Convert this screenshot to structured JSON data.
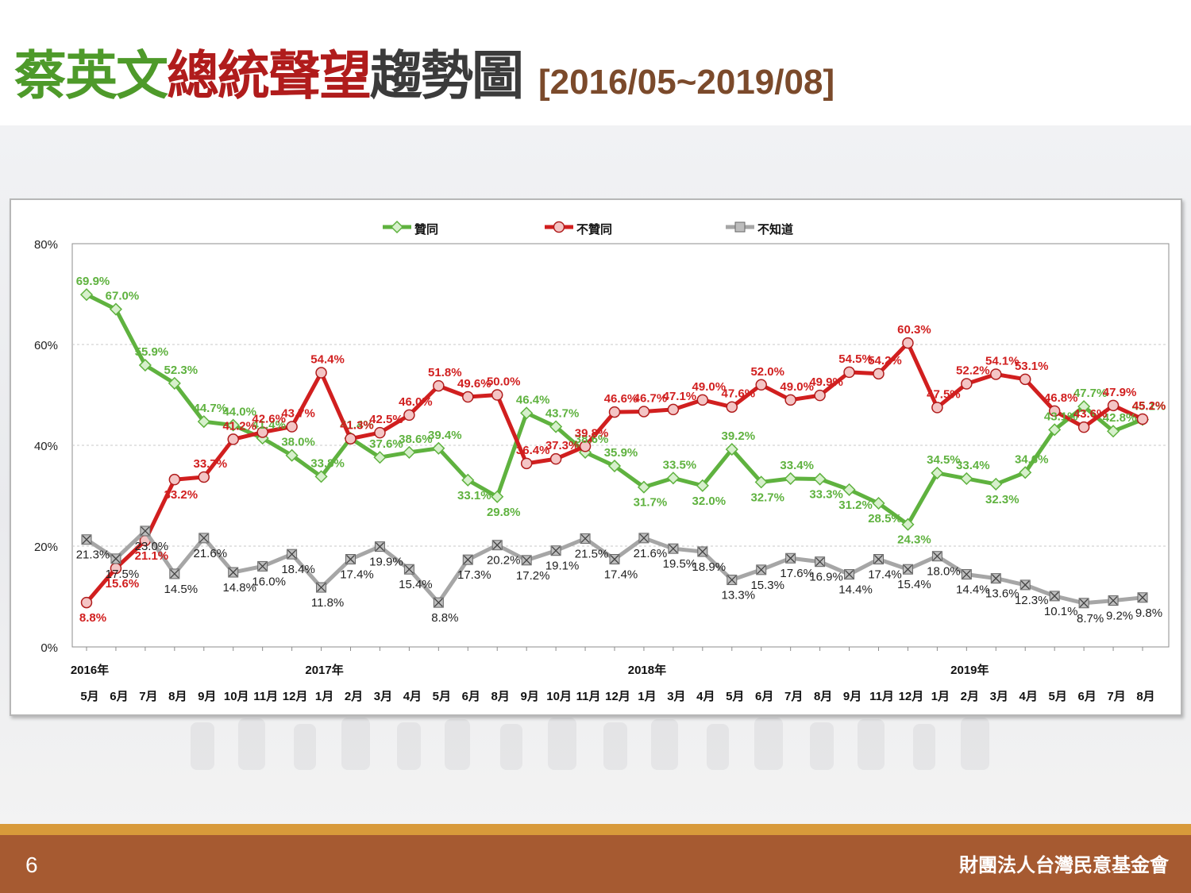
{
  "title": {
    "part1": "蔡英文",
    "part2": "總統聲望",
    "part3": "趨勢圖",
    "range": "[2016/05~2019/08]"
  },
  "footer": {
    "page_number": "6",
    "organization": "財團法人台灣民意基金會"
  },
  "colors": {
    "approve": "#5fb23f",
    "disapprove": "#d11f1f",
    "unknown": "#a6a6a6",
    "title_green": "#4e9a2a",
    "title_red": "#b01c1c",
    "footer_bg": "#a65a31",
    "footer_stripe": "#d89a3a"
  },
  "chart_data": {
    "type": "line",
    "ylim": [
      0,
      80
    ],
    "yticks": [
      "0%",
      "20%",
      "40%",
      "60%",
      "80%"
    ],
    "legend_position": "top",
    "grid": "horizontal dashed",
    "year_labels": [
      {
        "label": "2016年",
        "index": 0
      },
      {
        "label": "2017年",
        "index": 8
      },
      {
        "label": "2018年",
        "index": 19
      },
      {
        "label": "2019年",
        "index": 30
      }
    ],
    "categories": [
      "5月",
      "6月",
      "7月",
      "8月",
      "9月",
      "10月",
      "11月",
      "12月",
      "1月",
      "2月",
      "3月",
      "4月",
      "5月",
      "6月",
      "8月",
      "9月",
      "10月",
      "11月",
      "12月",
      "1月",
      "3月",
      "4月",
      "5月",
      "6月",
      "7月",
      "8月",
      "9月",
      "11月",
      "12月",
      "1月",
      "2月",
      "3月",
      "4月",
      "5月",
      "6月",
      "7月",
      "8月"
    ],
    "series": [
      {
        "name": "贊同",
        "key": "approve",
        "values": [
          69.9,
          67.0,
          55.9,
          52.3,
          44.7,
          44.0,
          41.4,
          38.0,
          33.8,
          41.4,
          37.6,
          38.6,
          39.4,
          33.1,
          29.8,
          46.4,
          43.7,
          38.6,
          35.9,
          31.7,
          33.5,
          32.0,
          39.2,
          32.7,
          33.4,
          33.3,
          31.2,
          28.5,
          24.3,
          34.5,
          33.4,
          32.3,
          34.6,
          43.1,
          47.7,
          42.8,
          45.1
        ]
      },
      {
        "name": "不贊同",
        "key": "disapprove",
        "values": [
          8.8,
          15.6,
          21.1,
          33.2,
          33.7,
          41.2,
          42.6,
          43.7,
          54.4,
          41.3,
          42.5,
          46.0,
          51.8,
          49.6,
          50.0,
          36.4,
          37.3,
          39.8,
          46.6,
          46.7,
          47.1,
          49.0,
          47.6,
          52.0,
          49.0,
          49.9,
          54.5,
          54.2,
          60.3,
          47.5,
          52.2,
          54.1,
          53.1,
          46.8,
          43.6,
          47.9,
          45.2
        ]
      },
      {
        "name": "不知道",
        "key": "unknown",
        "values": [
          21.3,
          17.5,
          23.0,
          14.5,
          21.6,
          14.8,
          16.0,
          18.4,
          11.8,
          17.4,
          19.9,
          15.4,
          8.8,
          17.3,
          20.2,
          17.2,
          19.1,
          21.5,
          17.4,
          21.6,
          19.5,
          18.9,
          13.3,
          15.3,
          17.6,
          16.9,
          14.4,
          17.4,
          15.4,
          18.0,
          14.4,
          13.6,
          12.3,
          10.1,
          8.7,
          9.2,
          9.8
        ]
      }
    ]
  }
}
